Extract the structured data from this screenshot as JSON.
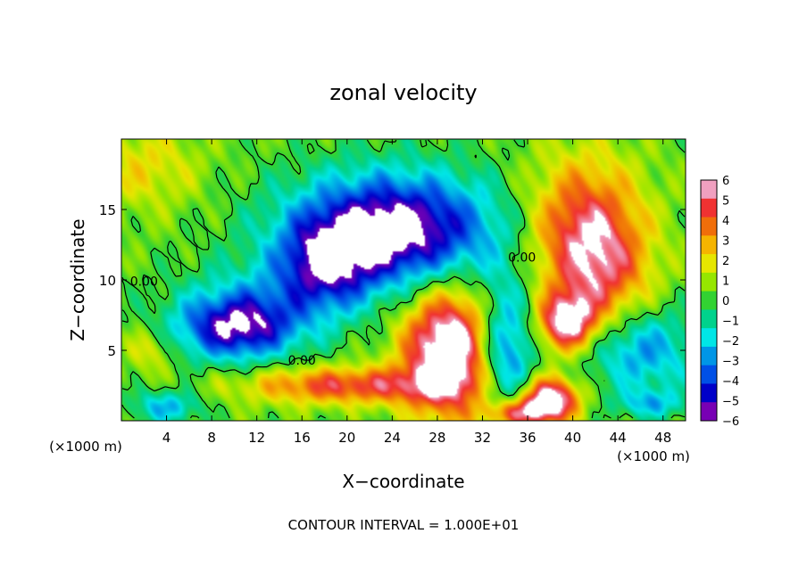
{
  "chart_data": {
    "type": "heatmap",
    "title": "zonal velocity",
    "xlabel": "X−coordinate",
    "ylabel": "Z−coordinate",
    "x_unit_left": "(×1000 m)",
    "x_unit_right": "(×1000 m)",
    "footer": "CONTOUR INTERVAL = 1.000E+01",
    "xlim": [
      0,
      50
    ],
    "ylim": [
      0,
      20
    ],
    "x_ticks": [
      {
        "value": 4,
        "label": "4"
      },
      {
        "value": 8,
        "label": "8"
      },
      {
        "value": 12,
        "label": "12"
      },
      {
        "value": 16,
        "label": "16"
      },
      {
        "value": 20,
        "label": "20"
      },
      {
        "value": 24,
        "label": "24"
      },
      {
        "value": 28,
        "label": "28"
      },
      {
        "value": 32,
        "label": "32"
      },
      {
        "value": 36,
        "label": "36"
      },
      {
        "value": 40,
        "label": "40"
      },
      {
        "value": 44,
        "label": "44"
      },
      {
        "value": 48,
        "label": "48"
      }
    ],
    "y_ticks": [
      {
        "value": 5,
        "label": "5"
      },
      {
        "value": 10,
        "label": "10"
      },
      {
        "value": 15,
        "label": "15"
      }
    ],
    "contour_labels": [
      {
        "text": "0.00",
        "x": 2.0,
        "y": 9.6
      },
      {
        "text": "0.00",
        "x": 16.0,
        "y": 4.0
      },
      {
        "text": "0.00",
        "x": 35.5,
        "y": 11.3
      }
    ],
    "colorbar": {
      "vmin": -6,
      "vmax": 6,
      "tick_labels": [
        "6",
        "5",
        "4",
        "3",
        "2",
        "1",
        "0",
        "−1",
        "−2",
        "−3",
        "−4",
        "−5",
        "−6"
      ],
      "colors": [
        "#f0a0c0",
        "#f03232",
        "#f06e0a",
        "#f5b400",
        "#e6e600",
        "#96e600",
        "#32d232",
        "#00d28c",
        "#00e6e6",
        "#0096e6",
        "#0050e6",
        "#0000c8",
        "#7800b4"
      ]
    },
    "saturated_color": "#ffffff"
  }
}
